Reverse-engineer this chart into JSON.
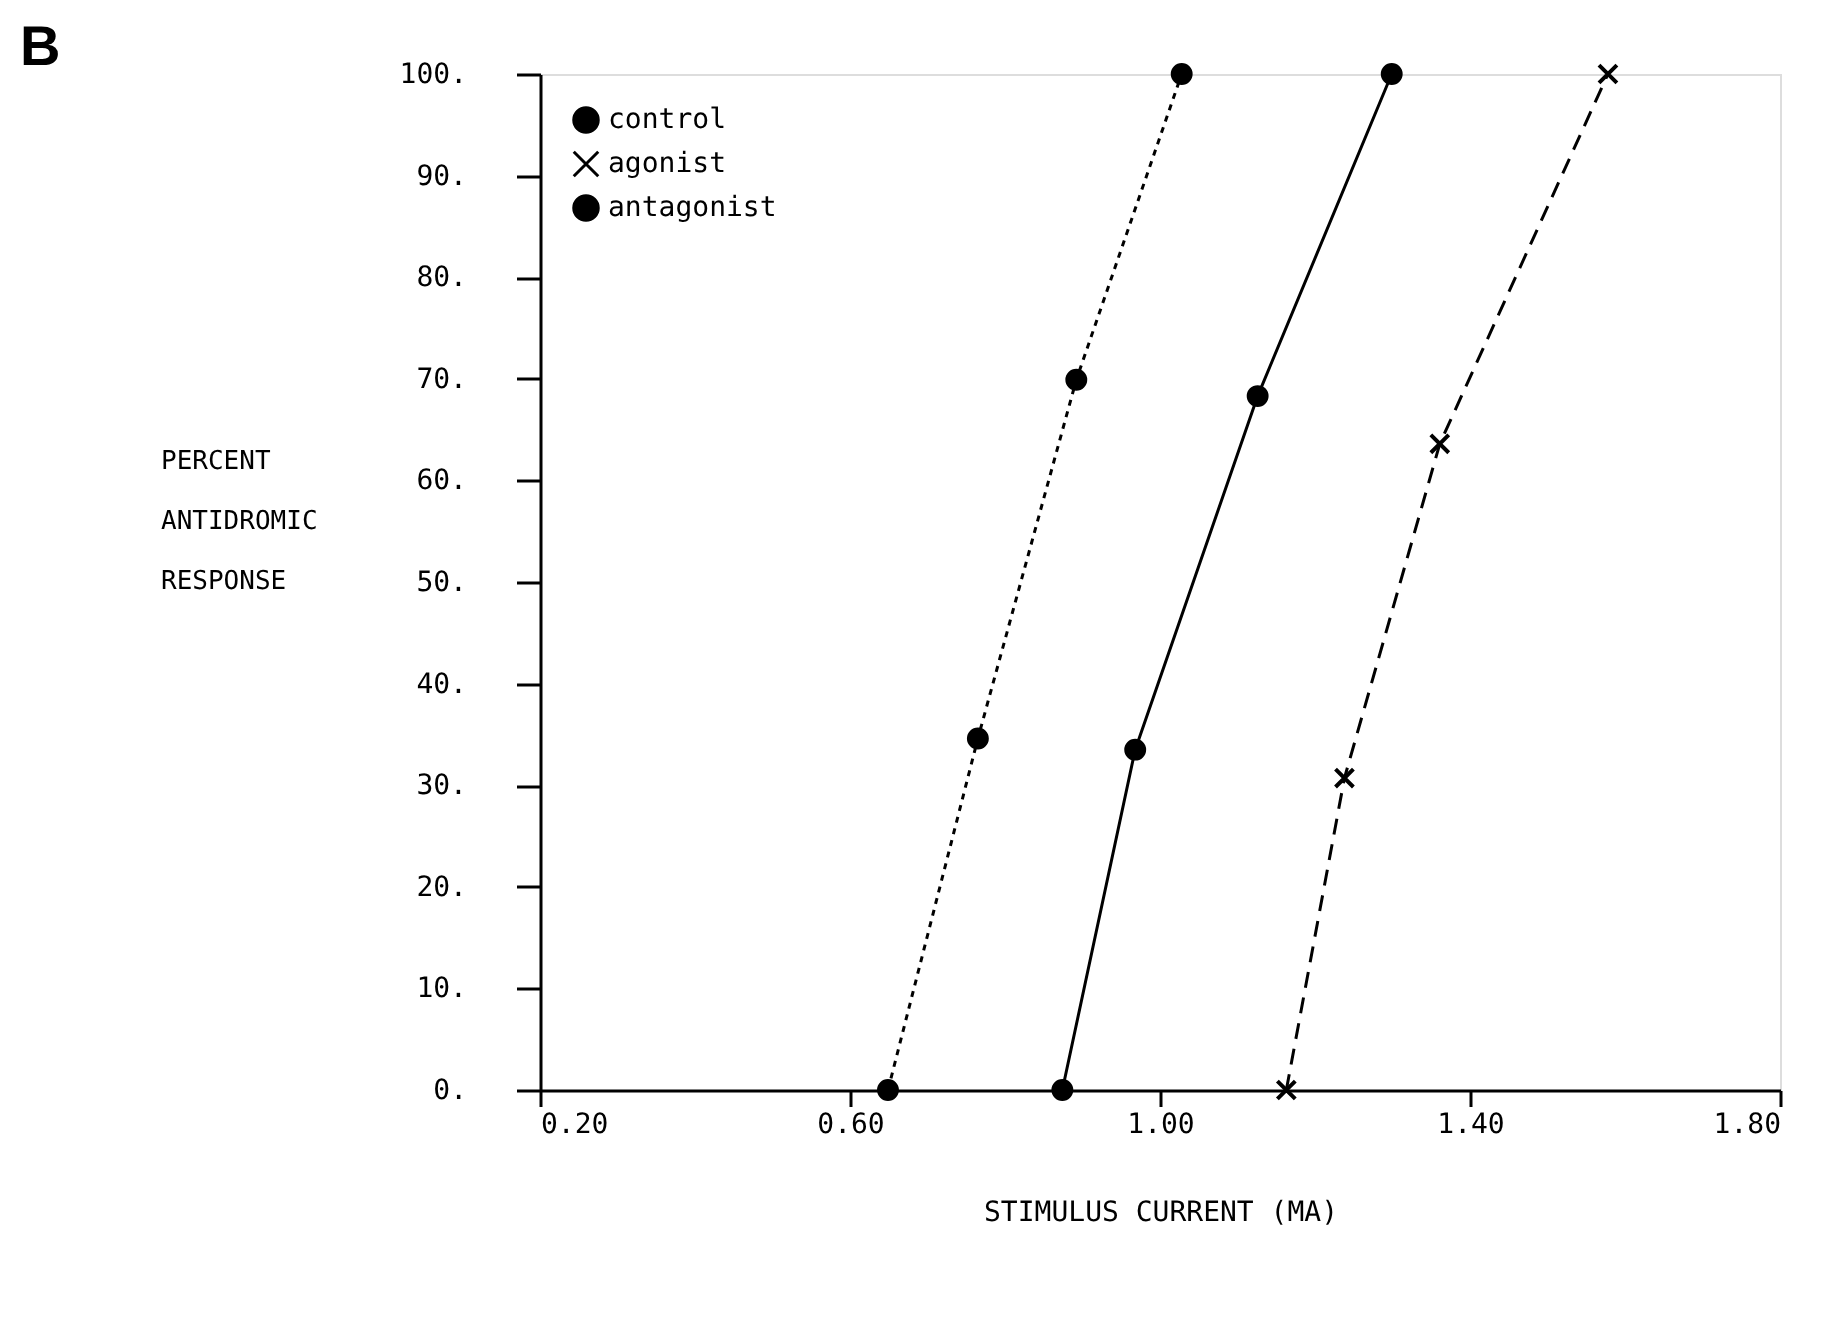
{
  "chart_data": {
    "type": "line",
    "title": "B",
    "xlabel": "STIMULUS CURRENT (MA)",
    "ylabel": "PERCENT\nANTIDROMIC\nRESPONSE",
    "xlim": [
      0.2,
      1.8
    ],
    "ylim": [
      0,
      100
    ],
    "xticks": [
      {
        "value": 0.2,
        "label": "0.20"
      },
      {
        "value": 0.6,
        "label": "0.60"
      },
      {
        "value": 1.0,
        "label": "1.00"
      },
      {
        "value": 1.4,
        "label": "1.40"
      },
      {
        "value": 1.8,
        "label": "1.80"
      }
    ],
    "yticks": [
      {
        "value": 0,
        "label": "0."
      },
      {
        "value": 10,
        "label": "10."
      },
      {
        "value": 20,
        "label": "20."
      },
      {
        "value": 30,
        "label": "30."
      },
      {
        "value": 40,
        "label": "40."
      },
      {
        "value": 50,
        "label": "50."
      },
      {
        "value": 60,
        "label": "60."
      },
      {
        "value": 70,
        "label": "70."
      },
      {
        "value": 80,
        "label": "80."
      },
      {
        "value": 90,
        "label": "90."
      },
      {
        "value": 100,
        "label": "100."
      }
    ],
    "grid": false,
    "legend": "top left",
    "series": [
      {
        "name": "control",
        "color": "#000000",
        "marker": "circle",
        "line_style": "solid",
        "x": [
          0.874,
          0.968,
          1.126,
          1.299
        ],
        "values": [
          0,
          33.5,
          68.3,
          100
        ]
      },
      {
        "name": "agonist",
        "color": "#000000",
        "marker": "cross",
        "line_style": "dashed",
        "x": [
          1.163,
          1.238,
          1.361,
          1.578
        ],
        "values": [
          0,
          30.7,
          63.6,
          100
        ]
      },
      {
        "name": "antagonist",
        "color": "#000000",
        "marker": "circle",
        "line_style": "dotted",
        "x": [
          0.649,
          0.765,
          0.892,
          1.028
        ],
        "values": [
          0,
          34.6,
          69.9,
          100
        ]
      }
    ]
  }
}
